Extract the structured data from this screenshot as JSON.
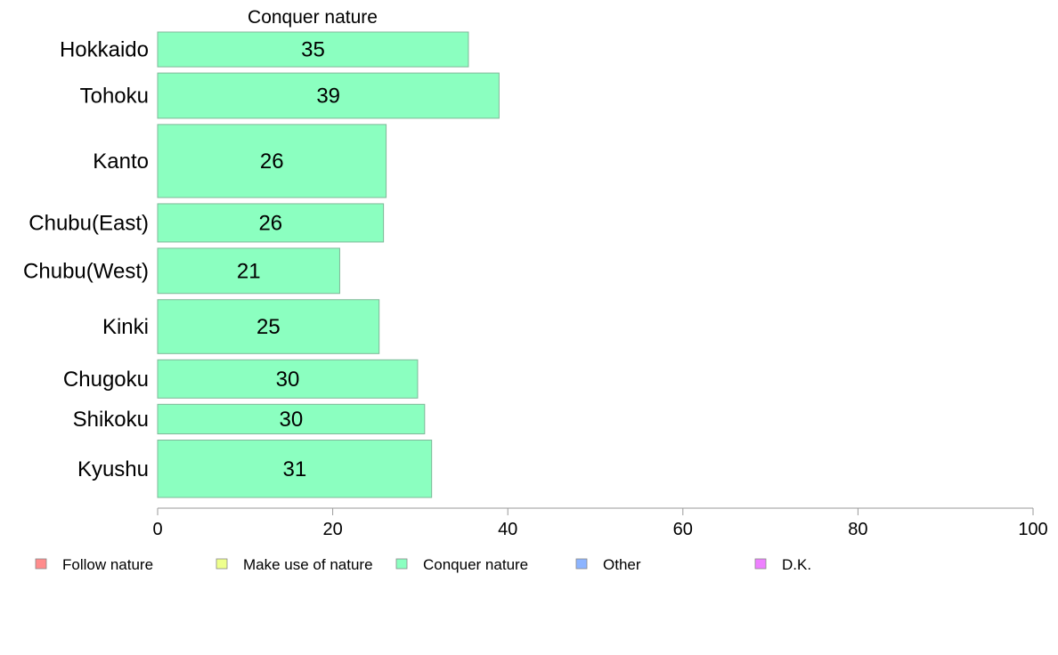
{
  "chart_data": {
    "type": "bar",
    "orientation": "horizontal",
    "title": "Conquer nature",
    "categories": [
      "Hokkaido",
      "Tohoku",
      "Kanto",
      "Chubu(East)",
      "Chubu(West)",
      "Kinki",
      "Chugoku",
      "Shikoku",
      "Kyushu"
    ],
    "series": [
      {
        "name": "Conquer nature",
        "values": [
          35,
          39,
          26,
          26,
          21,
          25,
          30,
          30,
          31
        ],
        "bar_values": [
          35.5,
          39,
          26.1,
          25.8,
          20.8,
          25.3,
          29.7,
          30.5,
          31.3
        ]
      }
    ],
    "relative_widths": [
      1,
      1.3,
      2.1,
      1.1,
      1.3,
      1.55,
      1.1,
      0.85,
      1.65
    ],
    "xlim": [
      0,
      100
    ],
    "xticks": [
      0,
      20,
      40,
      60,
      80,
      100
    ],
    "grid": false,
    "bar_color": "#8bffc0",
    "bar_edge": "#7fb898",
    "axis_color": "#9a9a9a",
    "legend": {
      "placement": "bottom",
      "items": [
        {
          "label": "Follow nature",
          "color": "#ff8c8c"
        },
        {
          "label": "Make use of nature",
          "color": "#eeff8c"
        },
        {
          "label": "Conquer nature",
          "color": "#8bffc0"
        },
        {
          "label": "Other",
          "color": "#8cb4ff"
        },
        {
          "label": "D.K.",
          "color": "#ee80ff"
        }
      ]
    }
  }
}
